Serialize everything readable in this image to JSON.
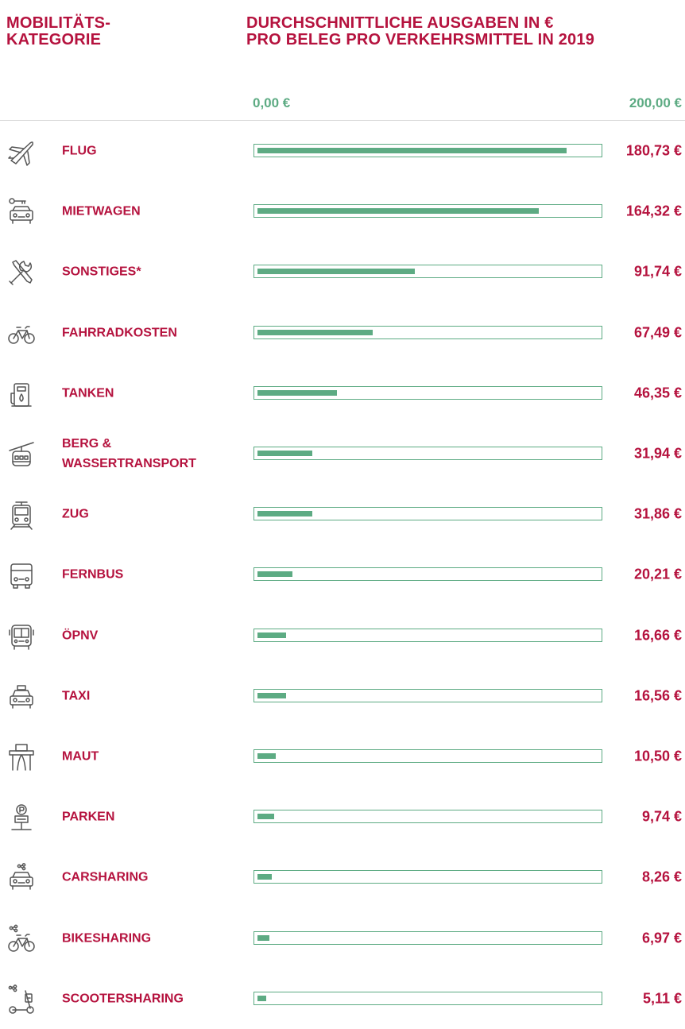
{
  "header": {
    "left": "MOBILITÄTS-\nKATEGORIE",
    "right": "DURCHSCHNITTLICHE AUSGABEN IN €\nPRO BELEG PRO VERKEHRSMITTEL IN 2019"
  },
  "colors": {
    "accent": "#b5123e",
    "bar": "#5dab83",
    "icon": "#555555"
  },
  "chart_data": {
    "type": "bar",
    "orientation": "horizontal",
    "title": "DURCHSCHNITTLICHE AUSGABEN IN € PRO BELEG PRO VERKEHRSMITTEL IN 2019",
    "xlim": [
      0,
      200
    ],
    "axis_min_label": "0,00 €",
    "axis_max_label": "200,00 €",
    "grid": false,
    "rows": [
      {
        "label": "FLUG",
        "value": 180.73,
        "value_label": "180,73 €",
        "icon": "airplane-icon"
      },
      {
        "label": "MIETWAGEN",
        "value": 164.32,
        "value_label": "164,32 €",
        "icon": "rental-car-icon"
      },
      {
        "label": "SONSTIGES*",
        "value": 91.74,
        "value_label": "91,74 €",
        "icon": "tools-icon"
      },
      {
        "label": "FAHRRADKOSTEN",
        "value": 67.49,
        "value_label": "67,49 €",
        "icon": "bicycle-icon"
      },
      {
        "label": "TANKEN",
        "value": 46.35,
        "value_label": "46,35 €",
        "icon": "fuel-pump-icon"
      },
      {
        "label": "BERG &\nWASSERTRANSPORT",
        "value": 31.94,
        "value_label": "31,94 €",
        "icon": "gondola-icon"
      },
      {
        "label": "ZUG",
        "value": 31.86,
        "value_label": "31,86 €",
        "icon": "train-icon"
      },
      {
        "label": "FERNBUS",
        "value": 20.21,
        "value_label": "20,21 €",
        "icon": "coach-bus-icon"
      },
      {
        "label": "ÖPNV",
        "value": 16.66,
        "value_label": "16,66 €",
        "icon": "city-bus-icon"
      },
      {
        "label": "TAXI",
        "value": 16.56,
        "value_label": "16,56 €",
        "icon": "taxi-icon"
      },
      {
        "label": "MAUT",
        "value": 10.5,
        "value_label": "10,50 €",
        "icon": "toll-gate-icon"
      },
      {
        "label": "PARKEN",
        "value": 9.74,
        "value_label": "9,74 €",
        "icon": "parking-sign-icon"
      },
      {
        "label": "CARSHARING",
        "value": 8.26,
        "value_label": "8,26 €",
        "icon": "carsharing-icon"
      },
      {
        "label": "BIKESHARING",
        "value": 6.97,
        "value_label": "6,97 €",
        "icon": "bikesharing-icon"
      },
      {
        "label": "SCOOTERSHARING",
        "value": 5.11,
        "value_label": "5,11 €",
        "icon": "scootersharing-icon"
      }
    ]
  }
}
